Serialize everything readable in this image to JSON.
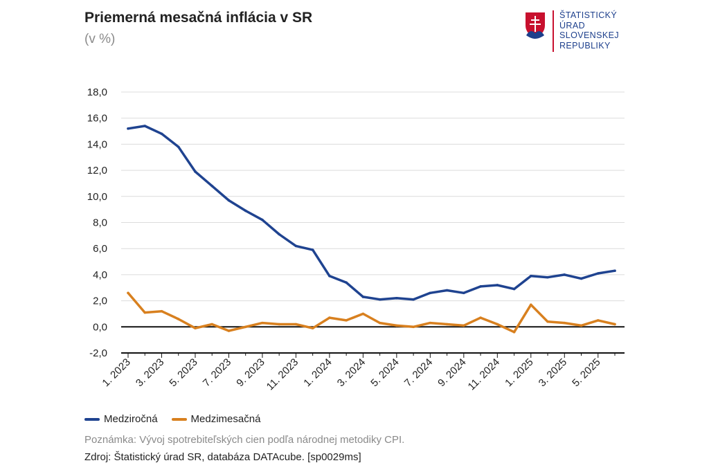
{
  "header": {
    "title": "Priemerná mesačná inflácia v SR",
    "subtitle": "(v %)"
  },
  "logo": {
    "lines": [
      "ŠTATISTICKÝ",
      "ÚRAD",
      "SLOVENSKEJ",
      "REPUBLIKY"
    ],
    "color": "#1d3f8c",
    "accent": "#c8102e"
  },
  "chart_data": {
    "type": "line",
    "title": "Priemerná mesačná inflácia v SR",
    "ylabel": "(v %)",
    "ylim": [
      -2,
      18
    ],
    "yticks": [
      -2,
      0,
      2,
      4,
      6,
      8,
      10,
      12,
      14,
      16,
      18
    ],
    "ytick_labels": [
      "-2,0",
      "0,0",
      "2,0",
      "4,0",
      "6,0",
      "8,0",
      "10,0",
      "12,0",
      "14,0",
      "16,0",
      "18,0"
    ],
    "categories": [
      "1. 2023",
      "2. 2023",
      "3. 2023",
      "4. 2023",
      "5. 2023",
      "6. 2023",
      "7. 2023",
      "8. 2023",
      "9. 2023",
      "10. 2023",
      "11. 2023",
      "12. 2023",
      "1. 2024",
      "2. 2024",
      "3. 2024",
      "4. 2024",
      "5. 2024",
      "6. 2024",
      "7. 2024",
      "8. 2024",
      "9. 2024",
      "10. 2024",
      "11. 2024",
      "12. 2024",
      "1. 2025",
      "2. 2025",
      "3. 2025",
      "4. 2025",
      "5. 2025",
      "6. 2025"
    ],
    "xtick_labels": [
      "1. 2023",
      "3. 2023",
      "5. 2023",
      "7. 2023",
      "9. 2023",
      "11. 2023",
      "1. 2024",
      "3. 2024",
      "5. 2024",
      "7. 2024",
      "9. 2024",
      "11. 2024",
      "1. 2025",
      "3. 2025",
      "5. 2025"
    ],
    "grid": true,
    "series": [
      {
        "name": "Medziročná",
        "color": "#1f4390",
        "values": [
          15.2,
          15.4,
          14.8,
          13.8,
          11.9,
          10.8,
          9.7,
          8.9,
          8.2,
          7.1,
          6.2,
          5.9,
          3.9,
          3.4,
          2.3,
          2.1,
          2.2,
          2.1,
          2.6,
          2.8,
          2.6,
          3.1,
          3.2,
          2.9,
          3.9,
          3.8,
          4.0,
          3.7,
          4.1,
          4.3
        ]
      },
      {
        "name": "Medzimesačná",
        "color": "#d8801f",
        "values": [
          2.6,
          1.1,
          1.2,
          0.6,
          -0.1,
          0.2,
          -0.3,
          0.0,
          0.3,
          0.2,
          0.2,
          -0.1,
          0.7,
          0.5,
          1.0,
          0.3,
          0.1,
          0.0,
          0.3,
          0.2,
          0.1,
          0.7,
          0.2,
          -0.4,
          1.7,
          0.4,
          0.3,
          0.1,
          0.5,
          0.2
        ]
      }
    ]
  },
  "legend": {
    "items": [
      {
        "label": "Medziročná",
        "color": "#1f4390"
      },
      {
        "label": "Medzimesačná",
        "color": "#d8801f"
      }
    ]
  },
  "footer": {
    "note": "Poznámka: Vývoj spotrebiteľských cien podľa národnej metodiky CPI.",
    "source": "Zdroj: Štatistický úrad SR, databáza DATAcube. [sp0029ms]"
  }
}
